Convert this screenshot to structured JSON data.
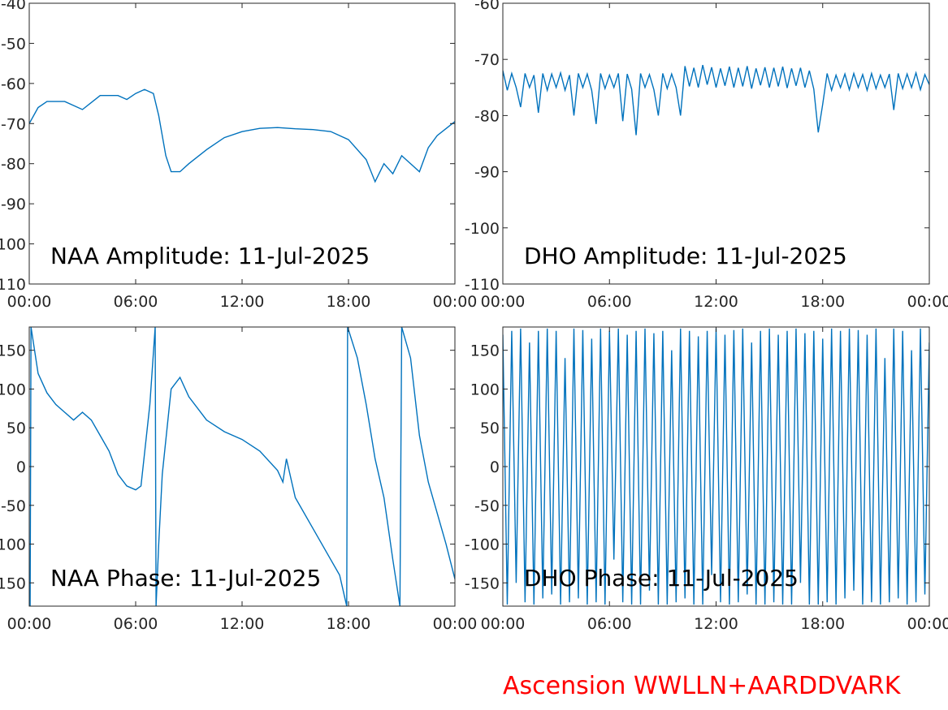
{
  "chart_data": [
    {
      "type": "line",
      "annotation": "NAA Amplitude: 11-Jul-2025",
      "color": "#0072bd",
      "x": [
        0,
        0.5,
        1,
        2,
        3,
        4,
        5,
        5.5,
        6,
        6.5,
        7,
        7.3,
        7.7,
        8,
        8.5,
        9,
        10,
        11,
        12,
        13,
        14,
        15,
        16,
        17,
        18,
        19,
        19.5,
        20,
        20.5,
        21,
        21.5,
        22,
        22.5,
        23,
        24
      ],
      "values": [
        -70,
        -66,
        -64.5,
        -64.5,
        -66.5,
        -63,
        -63,
        -64,
        -62.5,
        -61.5,
        -62.5,
        -68,
        -78,
        -82,
        -82,
        -80,
        -76.5,
        -73.5,
        -72,
        -71.2,
        -71,
        -71.3,
        -71.5,
        -72,
        -74,
        -79,
        -84.5,
        -80,
        -82.5,
        -78,
        -80,
        -82,
        -76,
        -73,
        -69.5
      ],
      "xlim": [
        0,
        24
      ],
      "ylim": [
        -110,
        -40
      ],
      "xticks": [
        {
          "value": 0,
          "label": "00:00"
        },
        {
          "value": 6,
          "label": "06:00"
        },
        {
          "value": 12,
          "label": "12:00"
        },
        {
          "value": 18,
          "label": "18:00"
        },
        {
          "value": 24,
          "label": "00:00"
        }
      ],
      "yticks": [
        -110,
        -100,
        -90,
        -80,
        -70,
        -60,
        -50,
        -40
      ]
    },
    {
      "type": "line",
      "annotation": "DHO Amplitude: 11-Jul-2025",
      "color": "#0072bd",
      "x": [
        0,
        0.25,
        0.5,
        0.75,
        1,
        1.25,
        1.5,
        1.75,
        2,
        2.25,
        2.5,
        2.75,
        3,
        3.25,
        3.5,
        3.75,
        4,
        4.25,
        4.5,
        4.75,
        5,
        5.25,
        5.5,
        5.75,
        6,
        6.25,
        6.5,
        6.75,
        7,
        7.25,
        7.5,
        7.75,
        8,
        8.25,
        8.5,
        8.75,
        9,
        9.25,
        9.5,
        9.75,
        10,
        10.25,
        10.5,
        10.75,
        11,
        11.25,
        11.5,
        11.75,
        12,
        12.25,
        12.5,
        12.75,
        13,
        13.25,
        13.5,
        13.75,
        14,
        14.25,
        14.5,
        14.75,
        15,
        15.25,
        15.5,
        15.75,
        16,
        16.25,
        16.5,
        16.75,
        17,
        17.25,
        17.5,
        17.75,
        18,
        18.25,
        18.5,
        18.75,
        19,
        19.25,
        19.5,
        19.75,
        20,
        20.25,
        20.5,
        20.75,
        21,
        21.25,
        21.5,
        21.75,
        22,
        22.25,
        22.5,
        22.75,
        23,
        23.25,
        23.5,
        23.75,
        24
      ],
      "values": [
        -72,
        -75.5,
        -72.5,
        -75,
        -78.5,
        -72.5,
        -75,
        -72.8,
        -79.5,
        -72.5,
        -75.5,
        -72.6,
        -75,
        -72.4,
        -75.5,
        -72.8,
        -80,
        -72.5,
        -75,
        -72.6,
        -75.5,
        -81.5,
        -72.5,
        -75.2,
        -72.8,
        -75,
        -72.5,
        -81,
        -72.6,
        -75.3,
        -83.5,
        -72.5,
        -75,
        -72.7,
        -75.4,
        -80,
        -72.5,
        -75.2,
        -72.6,
        -75,
        -80,
        -71.2,
        -74.8,
        -71.5,
        -75,
        -71,
        -74.5,
        -71.4,
        -75,
        -71.6,
        -74.7,
        -71.3,
        -75,
        -71.5,
        -74.8,
        -71.2,
        -75.2,
        -71.6,
        -74.6,
        -71.4,
        -75,
        -71.5,
        -74.8,
        -71.3,
        -75.1,
        -71.6,
        -74.7,
        -71.5,
        -75,
        -72,
        -75.3,
        -83,
        -78,
        -72.5,
        -75.5,
        -72.8,
        -75,
        -72.6,
        -75.4,
        -72.5,
        -75,
        -72.7,
        -75.5,
        -72.5,
        -75.2,
        -72.8,
        -75,
        -72.6,
        -79,
        -72.5,
        -75.2,
        -72.6,
        -75,
        -72.4,
        -75.4,
        -72.7,
        -74.5
      ],
      "xlim": [
        0,
        24
      ],
      "ylim": [
        -110,
        -60
      ],
      "xticks": [
        {
          "value": 0,
          "label": "00:00"
        },
        {
          "value": 6,
          "label": "06:00"
        },
        {
          "value": 12,
          "label": "12:00"
        },
        {
          "value": 18,
          "label": "18:00"
        },
        {
          "value": 24,
          "label": "00:00"
        }
      ],
      "yticks": [
        -110,
        -100,
        -90,
        -80,
        -70,
        -60
      ]
    },
    {
      "type": "line",
      "annotation": "NAA Phase: 11-Jul-2025",
      "color": "#0072bd",
      "x": [
        0,
        0.05,
        0.1,
        0.5,
        1,
        1.5,
        2,
        2.5,
        3,
        3.5,
        4,
        4.5,
        5,
        5.5,
        6,
        6.3,
        6.8,
        7.1,
        7.15,
        7.3,
        7.5,
        8,
        8.5,
        9,
        10,
        11,
        12,
        13,
        14,
        14.3,
        14.5,
        15,
        16,
        17,
        17.5,
        17.8,
        17.9,
        17.95,
        18.5,
        19,
        19.5,
        20,
        20.5,
        20.9,
        21,
        21.5,
        22,
        22.5,
        23,
        23.5,
        24
      ],
      "values": [
        -140,
        -180,
        180,
        120,
        95,
        80,
        70,
        60,
        70,
        60,
        40,
        20,
        -10,
        -25,
        -30,
        -25,
        80,
        180,
        -180,
        -100,
        -10,
        100,
        115,
        90,
        60,
        45,
        35,
        20,
        -5,
        -20,
        10,
        -40,
        -80,
        -120,
        -140,
        -170,
        -180,
        180,
        140,
        80,
        10,
        -40,
        -120,
        -180,
        180,
        140,
        40,
        -20,
        -60,
        -100,
        -145
      ],
      "xlim": [
        0,
        24
      ],
      "ylim": [
        -180,
        180
      ],
      "xticks": [
        {
          "value": 0,
          "label": "00:00"
        },
        {
          "value": 6,
          "label": "06:00"
        },
        {
          "value": 12,
          "label": "12:00"
        },
        {
          "value": 18,
          "label": "18:00"
        },
        {
          "value": 24,
          "label": "00:00"
        }
      ],
      "yticks": [
        -150,
        -100,
        -50,
        0,
        50,
        100,
        150
      ]
    },
    {
      "type": "line",
      "annotation": "DHO Phase: 11-Jul-2025",
      "color": "#0072bd",
      "x": [
        0,
        0.25,
        0.5,
        0.75,
        1,
        1.25,
        1.5,
        1.75,
        2,
        2.25,
        2.5,
        2.75,
        3,
        3.25,
        3.5,
        3.75,
        4,
        4.25,
        4.5,
        4.75,
        5,
        5.25,
        5.5,
        5.75,
        6,
        6.25,
        6.5,
        6.75,
        7,
        7.25,
        7.5,
        7.75,
        8,
        8.25,
        8.5,
        8.75,
        9,
        9.25,
        9.5,
        9.75,
        10,
        10.25,
        10.5,
        10.75,
        11,
        11.25,
        11.5,
        11.75,
        12,
        12.25,
        12.5,
        12.75,
        13,
        13.25,
        13.5,
        13.75,
        14,
        14.25,
        14.5,
        14.75,
        15,
        15.25,
        15.5,
        15.75,
        16,
        16.25,
        16.5,
        16.75,
        17,
        17.25,
        17.5,
        17.75,
        18,
        18.25,
        18.5,
        18.75,
        19,
        19.25,
        19.5,
        19.75,
        20,
        20.25,
        20.5,
        20.75,
        21,
        21.25,
        21.5,
        21.75,
        22,
        22.25,
        22.5,
        22.75,
        23,
        23.25,
        23.5,
        23.75,
        24
      ],
      "values": [
        170,
        -178,
        175,
        -150,
        178,
        -175,
        160,
        -178,
        175,
        -170,
        178,
        -165,
        175,
        -178,
        140,
        -175,
        178,
        -170,
        176,
        -178,
        165,
        -175,
        178,
        -178,
        175,
        -120,
        178,
        -175,
        170,
        -178,
        175,
        -178,
        178,
        -160,
        172,
        -178,
        175,
        -178,
        150,
        -175,
        178,
        -170,
        175,
        -178,
        168,
        -178,
        175,
        -140,
        178,
        -175,
        170,
        -178,
        176,
        -175,
        178,
        -165,
        160,
        -178,
        175,
        -178,
        178,
        -175,
        170,
        -178,
        175,
        -178,
        178,
        -150,
        172,
        -178,
        175,
        -178,
        165,
        -175,
        178,
        -178,
        175,
        -170,
        178,
        -160,
        176,
        -178,
        170,
        -175,
        178,
        -178,
        140,
        -175,
        178,
        -170,
        175,
        -178,
        150,
        -175,
        178,
        -165,
        160
      ],
      "xlim": [
        0,
        24
      ],
      "ylim": [
        -180,
        180
      ],
      "xticks": [
        {
          "value": 0,
          "label": "00:00"
        },
        {
          "value": 6,
          "label": "06:00"
        },
        {
          "value": 12,
          "label": "12:00"
        },
        {
          "value": 18,
          "label": "18:00"
        },
        {
          "value": 24,
          "label": "00:00"
        }
      ],
      "yticks": [
        -150,
        -100,
        -50,
        0,
        50,
        100,
        150
      ]
    }
  ],
  "footer": "Ascension WWLLN+AARDDVARK"
}
